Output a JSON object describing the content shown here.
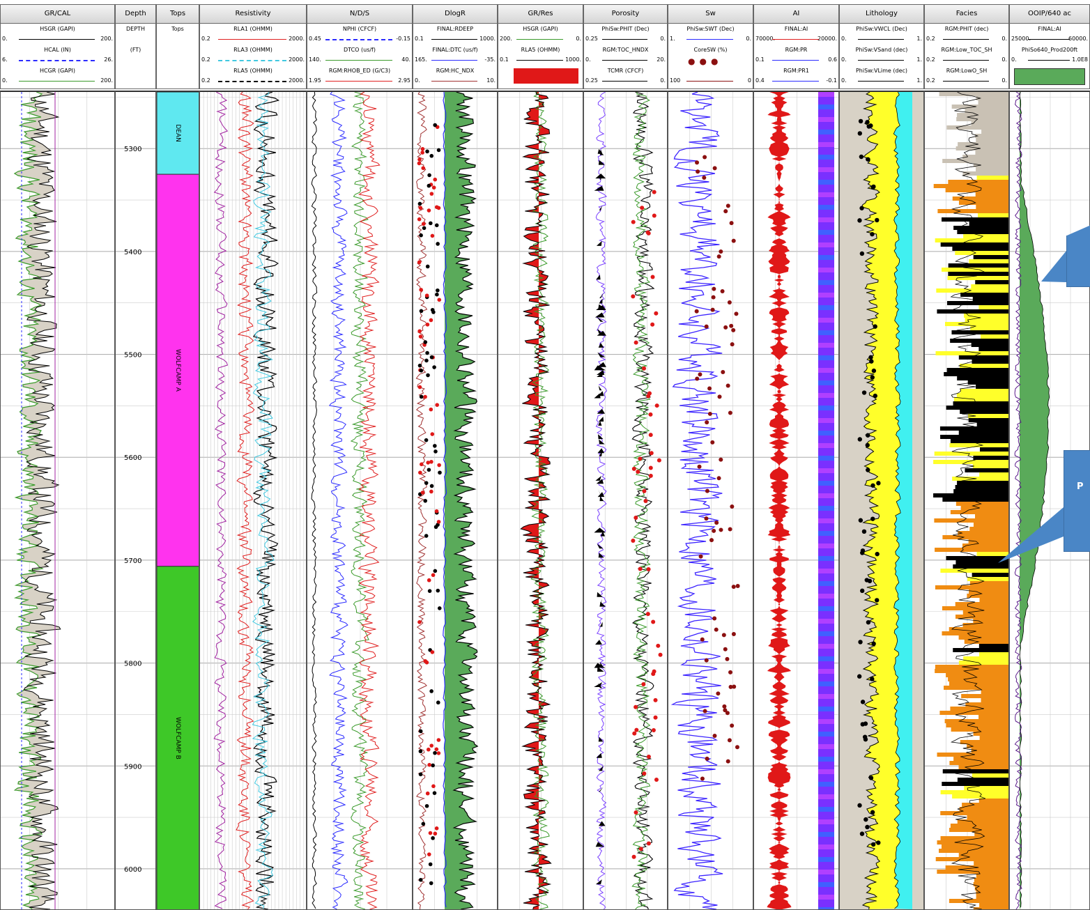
{
  "tracks": [
    {
      "id": "grcal",
      "title": "GR/CAL",
      "legend": [
        {
          "name": "HSGR (GAPI)",
          "min": "0.",
          "max": "200.",
          "color": "#000",
          "dash": false
        },
        {
          "name": "HCAL (IN)",
          "min": "6.",
          "max": "26.",
          "color": "#2a2aff",
          "dash": true
        },
        {
          "name": "HCGR (GAPI)",
          "min": "0.",
          "max": "200.",
          "color": "#3a9a2a",
          "dash": false
        }
      ]
    },
    {
      "id": "depth",
      "title": "Depth",
      "legend": [
        {
          "name": "DEPTH",
          "min": "",
          "max": "",
          "color": "#000",
          "dash": false
        },
        {
          "name": "(FT)",
          "min": "",
          "max": "",
          "color": "#000",
          "dash": false
        }
      ]
    },
    {
      "id": "tops",
      "title": "Tops",
      "legend": [
        {
          "name": "Tops",
          "min": "",
          "max": "",
          "color": "#000",
          "dash": false
        }
      ]
    },
    {
      "id": "res",
      "title": "Resistivity",
      "legend": [
        {
          "name": "RLA1 (OHMM)",
          "min": "0.2",
          "max": "2000.",
          "color": "#e02020",
          "dash": false
        },
        {
          "name": "RLA3 (OHMM)",
          "min": "0.2",
          "max": "2000.",
          "color": "#40c8e0",
          "dash": true
        },
        {
          "name": "RLA5 (OHMM)",
          "min": "0.2",
          "max": "2000.",
          "color": "#000",
          "dash": true
        }
      ]
    },
    {
      "id": "nds",
      "title": "N/D/S",
      "legend": [
        {
          "name": "NPHI (CFCF)",
          "min": "0.45",
          "max": "-0.15",
          "color": "#2a2aff",
          "dash": true
        },
        {
          "name": "DTCO (us/f)",
          "min": "140.",
          "max": "40.",
          "color": "#3a9a2a",
          "dash": false
        },
        {
          "name": "RGM:RHOB_ED (G/C3)",
          "min": "1.95",
          "max": "2.95",
          "color": "#e02020",
          "dash": false
        }
      ]
    },
    {
      "id": "dlogr",
      "title": "DlogR",
      "legend": [
        {
          "name": "FINAL:RDEEP",
          "min": "0.1",
          "max": "1000.",
          "color": "#000",
          "dash": false
        },
        {
          "name": "FINAL:DTC (us/f)",
          "min": "165.",
          "max": "-35.",
          "color": "#2a2aff",
          "dash": false
        },
        {
          "name": "RGM:HC_NDX",
          "min": "0.",
          "max": "10.",
          "color": "#a03030",
          "dash": false
        }
      ]
    },
    {
      "id": "grres",
      "title": "GR/Res",
      "legend": [
        {
          "name": "HSGR (GAPI)",
          "min": "200.",
          "max": "0.",
          "color": "#3a9a2a",
          "dash": false
        },
        {
          "name": "RLA5 (OHMM)",
          "min": "0.1",
          "max": "1000.",
          "color": "#000",
          "dash": false
        }
      ]
    },
    {
      "id": "poro",
      "title": "Porosity",
      "legend": [
        {
          "name": "PhiSw:PHIT (Dec)",
          "min": "0.25",
          "max": "0.",
          "color": "#000",
          "dash": false
        },
        {
          "name": "RGM:TOC_HNDX",
          "min": "0.",
          "max": "20.",
          "color": "#000",
          "dash": false
        },
        {
          "name": "TCMR (CFCF)",
          "min": "0.25",
          "max": "0.",
          "color": "#000",
          "dash": false
        }
      ]
    },
    {
      "id": "sw",
      "title": "Sw",
      "legend": [
        {
          "name": "PhiSw:SWT (Dec)",
          "min": "1.",
          "max": "0.",
          "color": "#2a2aff",
          "dash": false
        },
        {
          "name": "CoreSW (%)",
          "min": "",
          "max": "",
          "color": "#000",
          "dash": false
        },
        {
          "name": "",
          "min": "100",
          "max": "0",
          "color": "#8b1010",
          "dash": false
        }
      ]
    },
    {
      "id": "ai",
      "title": "AI",
      "legend": [
        {
          "name": "FINAL:AI",
          "min": "70000.",
          "max": "20000.",
          "color": "#e02020",
          "dash": false
        },
        {
          "name": "RGM:PR",
          "min": "0.1",
          "max": "0.6",
          "color": "#2a2aff",
          "dash": false
        },
        {
          "name": "RGM:PR1",
          "min": "0.4",
          "max": "-0.1",
          "color": "#2a2aff",
          "dash": false
        }
      ]
    },
    {
      "id": "lith",
      "title": "Lithology",
      "legend": [
        {
          "name": "PhiSw:VWCL (Dec)",
          "min": "0.",
          "max": "1.",
          "color": "#000",
          "dash": false
        },
        {
          "name": "PhiSw:VSand (dec)",
          "min": "0.",
          "max": "1.",
          "color": "#000",
          "dash": false
        },
        {
          "name": "PhiSw:VLime (dec)",
          "min": "0.",
          "max": "1.",
          "color": "#000",
          "dash": false
        }
      ]
    },
    {
      "id": "facies",
      "title": "Facies",
      "legend": [
        {
          "name": "RGM:PHIT (dec)",
          "min": "0.2",
          "max": "0.",
          "color": "#000",
          "dash": false
        },
        {
          "name": "RGM:Low_TOC_SH",
          "min": "0.2",
          "max": "0.",
          "color": "#000",
          "dash": false
        },
        {
          "name": "RGM:LowO_SH",
          "min": "0.2",
          "max": "0.",
          "color": "#000",
          "dash": false
        }
      ]
    },
    {
      "id": "ooip",
      "title": "OOIP/640 ac",
      "legend": [
        {
          "name": "FINAL:AI",
          "min": "25000.",
          "max": "60000.",
          "color": "#000",
          "dash": false
        },
        {
          "name": "PhiSo640_Prod200ft",
          "min": "0.",
          "max": "1.0E8",
          "color": "#000",
          "dash": false
        }
      ]
    }
  ],
  "chart_data": {
    "type": "line",
    "title": "",
    "ylabel": "Depth (FT)",
    "depth_range": [
      5245,
      6040
    ],
    "depth_ticks": [
      "5300",
      "5400",
      "5500",
      "5600",
      "5700",
      "5800",
      "5900",
      "6000"
    ],
    "formation_tops": [
      {
        "name": "DEAN",
        "top": 5245,
        "base": 5325,
        "color": "#5fe8f0"
      },
      {
        "name": "WOLFCAMP A",
        "top": 5325,
        "base": 5706,
        "color": "#ff33ee"
      },
      {
        "name": "WOLFCAMP B",
        "top": 5706,
        "base": 6040,
        "color": "#3ec828"
      }
    ],
    "colors": {
      "gr_fill": "#d8d2c6",
      "red": "#e01818",
      "green": "#5aaa5a",
      "yellow": "#ffff2a",
      "cyan": "#40f0f0",
      "orange": "#f08c12",
      "blue": "#2222ff"
    }
  },
  "callout_text": "P"
}
